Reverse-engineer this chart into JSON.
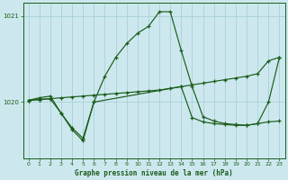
{
  "title": "Graphe pression niveau de la mer (hPa)",
  "bg_color": "#cce8ee",
  "grid_color": "#aad0d8",
  "line_color": "#1a5c1a",
  "xlim": [
    -0.5,
    23.5
  ],
  "ylim": [
    1019.35,
    1021.15
  ],
  "yticks": [
    1020,
    1021
  ],
  "xticks": [
    0,
    1,
    2,
    3,
    4,
    5,
    6,
    7,
    8,
    9,
    10,
    11,
    12,
    13,
    14,
    15,
    16,
    17,
    18,
    19,
    20,
    21,
    22,
    23
  ],
  "series1_x": [
    0,
    1,
    2,
    3,
    4,
    5,
    6,
    7,
    8,
    9,
    10,
    11,
    12,
    13,
    14,
    15,
    16,
    17,
    18,
    19,
    20,
    21,
    22,
    23
  ],
  "series1_y": [
    1020.02,
    1020.05,
    1020.07,
    1019.87,
    1019.7,
    1019.58,
    1020.0,
    1020.3,
    1020.52,
    1020.68,
    1020.8,
    1020.88,
    1021.05,
    1021.05,
    1020.6,
    1020.18,
    1019.83,
    1019.78,
    1019.75,
    1019.74,
    1019.73,
    1019.75,
    1019.77,
    1019.78
  ],
  "series2_x": [
    0,
    1,
    2,
    3,
    4,
    5,
    6,
    7,
    8,
    9,
    10,
    11,
    12,
    13,
    14,
    15,
    16,
    17,
    18,
    19,
    20,
    21,
    22,
    23
  ],
  "series2_y": [
    1020.02,
    1020.03,
    1020.04,
    1020.05,
    1020.06,
    1020.07,
    1020.08,
    1020.09,
    1020.1,
    1020.11,
    1020.12,
    1020.13,
    1020.14,
    1020.16,
    1020.18,
    1020.2,
    1020.22,
    1020.24,
    1020.26,
    1020.28,
    1020.3,
    1020.33,
    1020.48,
    1020.52
  ],
  "series3_x": [
    0,
    1,
    2,
    3,
    4,
    5,
    6,
    14,
    15,
    16,
    17,
    18,
    19,
    20,
    21,
    22,
    23
  ],
  "series3_y": [
    1020.02,
    1020.03,
    1020.04,
    1019.87,
    1019.68,
    1019.55,
    1020.0,
    1020.18,
    1019.82,
    1019.77,
    1019.75,
    1019.74,
    1019.73,
    1019.73,
    1019.75,
    1020.0,
    1020.52
  ]
}
